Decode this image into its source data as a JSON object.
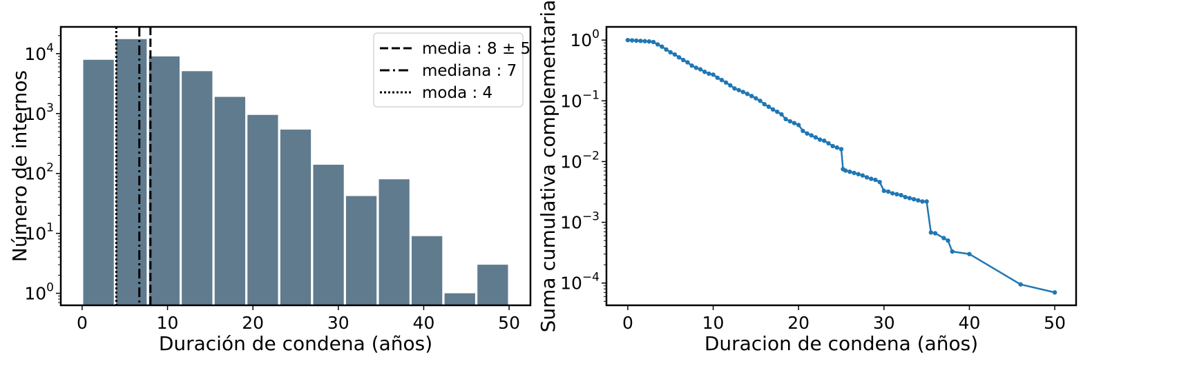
{
  "chart_data": [
    {
      "type": "bar",
      "xlabel": "Duración de condena (años)",
      "ylabel": "Número de internos",
      "yscale": "log",
      "xlim": [
        -2.5,
        52.5
      ],
      "ylim": [
        0.63,
        28000
      ],
      "xticks": [
        "0",
        "10",
        "20",
        "30",
        "40",
        "50"
      ],
      "yticks": [
        {
          "base": "10",
          "exp": "0"
        },
        {
          "base": "10",
          "exp": "1"
        },
        {
          "base": "10",
          "exp": "2"
        },
        {
          "base": "10",
          "exp": "3"
        },
        {
          "base": "10",
          "exp": "4"
        }
      ],
      "bar_color": "#607B8E",
      "bin_width": 3.85,
      "bars": [
        {
          "x": 1.92,
          "value": 7900
        },
        {
          "x": 5.77,
          "value": 17500
        },
        {
          "x": 9.62,
          "value": 9000
        },
        {
          "x": 13.46,
          "value": 5100
        },
        {
          "x": 17.31,
          "value": 1900
        },
        {
          "x": 21.15,
          "value": 950
        },
        {
          "x": 25.0,
          "value": 540
        },
        {
          "x": 28.85,
          "value": 140
        },
        {
          "x": 32.69,
          "value": 42
        },
        {
          "x": 36.54,
          "value": 80
        },
        {
          "x": 40.38,
          "value": 9
        },
        {
          "x": 44.23,
          "value": 1
        },
        {
          "x": 48.08,
          "value": 3
        }
      ],
      "vlines": [
        {
          "x": 8,
          "style": "dashed",
          "label": "media : 8 ± 5"
        },
        {
          "x": 6.7,
          "style": "dashdot",
          "label": "mediana : 7"
        },
        {
          "x": 4,
          "style": "dotted",
          "label": "moda : 4"
        }
      ],
      "legend": {
        "placement": "top-right",
        "entries": [
          {
            "style": "dashed",
            "label": "media : 8 ± 5"
          },
          {
            "style": "dashdot",
            "label": "mediana : 7"
          },
          {
            "style": "dotted",
            "label": "moda : 4"
          }
        ]
      }
    },
    {
      "type": "line",
      "xlabel": "Duracion de condena (años)",
      "ylabel": "Suma cumulativa complementaria",
      "yscale": "log",
      "xlim": [
        -2.5,
        52.5
      ],
      "ylim": [
        4.3e-05,
        1.65
      ],
      "xticks": [
        "0",
        "10",
        "20",
        "30",
        "40",
        "50"
      ],
      "yticks": [
        {
          "base": "10",
          "exp": "0"
        },
        {
          "base": "10",
          "exp": "−1"
        },
        {
          "base": "10",
          "exp": "−2"
        },
        {
          "base": "10",
          "exp": "−3"
        },
        {
          "base": "10",
          "exp": "−4"
        }
      ],
      "line_color": "#1F77B4",
      "x": [
        0,
        0.5,
        1,
        1.5,
        2,
        2.5,
        3,
        3.5,
        4,
        4.5,
        5,
        5.5,
        6,
        6.5,
        7,
        7.5,
        8,
        8.5,
        9,
        9.5,
        10,
        10.5,
        11,
        11.5,
        12,
        12.5,
        13,
        13.5,
        14,
        14.5,
        15,
        15.5,
        16,
        16.5,
        17,
        17.5,
        18,
        18.5,
        19,
        19.5,
        20,
        20.5,
        21,
        21.5,
        22,
        22.5,
        23,
        23.5,
        24,
        24.5,
        25,
        25.2,
        25.5,
        26,
        26.5,
        27,
        27.5,
        28,
        28.5,
        29,
        29.5,
        30,
        30.5,
        31,
        31.5,
        32,
        32.5,
        33,
        33.5,
        34,
        34.5,
        35,
        35.5,
        36,
        37,
        37.5,
        38,
        40,
        46,
        50
      ],
      "y": [
        1.0,
        0.99,
        0.98,
        0.97,
        0.96,
        0.95,
        0.93,
        0.85,
        0.78,
        0.7,
        0.63,
        0.58,
        0.52,
        0.47,
        0.43,
        0.38,
        0.35,
        0.33,
        0.3,
        0.28,
        0.27,
        0.24,
        0.22,
        0.2,
        0.18,
        0.16,
        0.15,
        0.14,
        0.13,
        0.12,
        0.11,
        0.1,
        0.088,
        0.08,
        0.072,
        0.066,
        0.06,
        0.05,
        0.046,
        0.043,
        0.04,
        0.032,
        0.029,
        0.027,
        0.025,
        0.023,
        0.022,
        0.02,
        0.018,
        0.017,
        0.016,
        0.0075,
        0.0071,
        0.0068,
        0.0065,
        0.0062,
        0.0059,
        0.0055,
        0.0052,
        0.005,
        0.0046,
        0.0033,
        0.0032,
        0.003,
        0.0029,
        0.0028,
        0.0026,
        0.0025,
        0.0024,
        0.0023,
        0.0022,
        0.0022,
        0.00068,
        0.00066,
        0.00055,
        0.0005,
        0.00033,
        0.0003,
        9.5e-05,
        7e-05
      ]
    }
  ]
}
